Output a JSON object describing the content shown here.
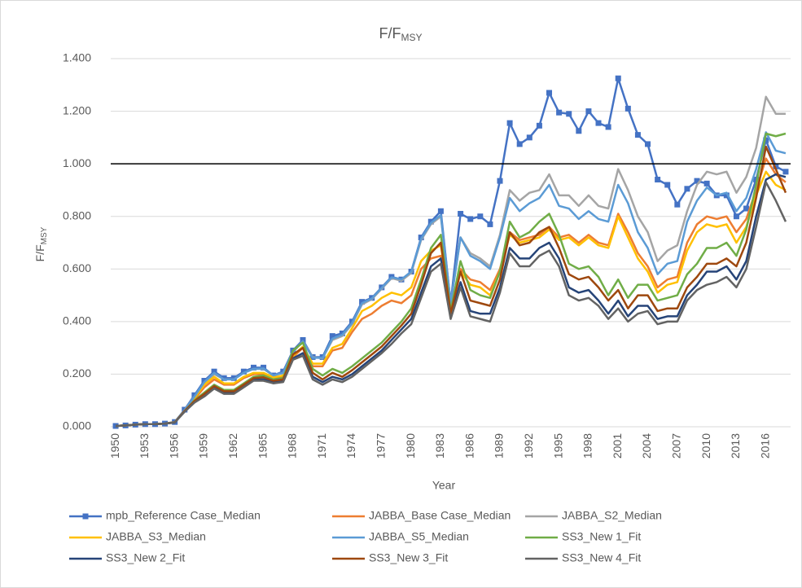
{
  "chart_data": {
    "type": "line",
    "title": "F/F",
    "title_subscript": "MSY",
    "x_label": "Year",
    "y_label": "F/F",
    "y_label_subscript": "MSY",
    "categories": [
      "1950",
      null,
      null,
      "1953",
      null,
      null,
      "1956",
      null,
      null,
      "1959",
      null,
      null,
      "1962",
      null,
      null,
      "1965",
      null,
      null,
      "1968",
      null,
      null,
      "1971",
      null,
      null,
      "1974",
      null,
      null,
      "1977",
      null,
      null,
      "1980",
      null,
      null,
      "1983",
      null,
      null,
      "1986",
      null,
      null,
      "1989",
      null,
      null,
      "1992",
      null,
      null,
      "1995",
      null,
      null,
      "1998",
      null,
      null,
      "2001",
      null,
      null,
      "2004",
      null,
      null,
      "2007",
      null,
      null,
      "2010",
      null,
      null,
      "2013",
      null,
      null,
      "2016",
      null,
      null
    ],
    "ylim": [
      0,
      1.4
    ],
    "yticks": [
      {
        "value": 0,
        "label": "0.000"
      },
      {
        "value": 0.2,
        "label": "0.200"
      },
      {
        "value": 0.4,
        "label": "0.400"
      },
      {
        "value": 0.6,
        "label": "0.600"
      },
      {
        "value": 0.8,
        "label": "0.800"
      },
      {
        "value": 1,
        "label": "1.000"
      },
      {
        "value": 1.2,
        "label": "1.200"
      },
      {
        "value": 1.4,
        "label": "1.400"
      }
    ],
    "grid": true,
    "reference_line": {
      "value": 1,
      "color": "#000000"
    },
    "legend": "bottom",
    "series": [
      {
        "name": "mpb_Reference Case_Median",
        "color": "#4472c4",
        "marker": "square",
        "values": [
          0.003,
          0.005,
          0.008,
          0.01,
          0.01,
          0.012,
          0.018,
          0.065,
          0.12,
          0.175,
          0.21,
          0.185,
          0.185,
          0.21,
          0.225,
          0.225,
          0.195,
          0.21,
          0.29,
          0.33,
          0.265,
          0.265,
          0.345,
          0.355,
          0.4,
          0.475,
          0.49,
          0.53,
          0.57,
          0.56,
          0.59,
          0.72,
          0.78,
          0.82,
          0.47,
          0.81,
          0.79,
          0.8,
          0.77,
          0.935,
          1.155,
          1.075,
          1.1,
          1.145,
          1.27,
          1.195,
          1.19,
          1.125,
          1.2,
          1.155,
          1.14,
          1.325,
          1.21,
          1.11,
          1.075,
          0.94,
          0.92,
          0.845,
          0.905,
          0.935,
          0.925,
          0.88,
          0.88,
          0.8,
          0.83,
          0.94,
          1.09,
          0.99,
          0.97
        ]
      },
      {
        "name": "JABBA_Base Case_Median",
        "color": "#ed7d31",
        "values": [
          0.003,
          0.005,
          0.008,
          0.01,
          0.01,
          0.012,
          0.017,
          0.06,
          0.105,
          0.15,
          0.18,
          0.16,
          0.16,
          0.185,
          0.2,
          0.2,
          0.185,
          0.19,
          0.265,
          0.3,
          0.23,
          0.23,
          0.29,
          0.3,
          0.36,
          0.41,
          0.43,
          0.46,
          0.48,
          0.47,
          0.5,
          0.6,
          0.64,
          0.65,
          0.46,
          0.6,
          0.56,
          0.55,
          0.52,
          0.6,
          0.74,
          0.71,
          0.72,
          0.73,
          0.76,
          0.72,
          0.73,
          0.7,
          0.73,
          0.7,
          0.69,
          0.81,
          0.74,
          0.66,
          0.61,
          0.53,
          0.56,
          0.57,
          0.7,
          0.77,
          0.8,
          0.79,
          0.8,
          0.74,
          0.79,
          0.9,
          1.02,
          0.96,
          0.93
        ]
      },
      {
        "name": "JABBA_S2_Median",
        "color": "#a5a5a5",
        "values": [
          0.003,
          0.005,
          0.008,
          0.01,
          0.01,
          0.012,
          0.018,
          0.063,
          0.115,
          0.165,
          0.2,
          0.18,
          0.18,
          0.205,
          0.22,
          0.22,
          0.195,
          0.205,
          0.285,
          0.325,
          0.265,
          0.26,
          0.33,
          0.345,
          0.39,
          0.465,
          0.485,
          0.525,
          0.565,
          0.555,
          0.585,
          0.71,
          0.77,
          0.8,
          0.47,
          0.72,
          0.66,
          0.64,
          0.61,
          0.73,
          0.9,
          0.86,
          0.89,
          0.9,
          0.96,
          0.88,
          0.88,
          0.84,
          0.88,
          0.84,
          0.83,
          0.98,
          0.9,
          0.8,
          0.74,
          0.63,
          0.67,
          0.69,
          0.82,
          0.92,
          0.97,
          0.96,
          0.97,
          0.89,
          0.95,
          1.06,
          1.255,
          1.19,
          1.19
        ]
      },
      {
        "name": "JABBA_S3_Median",
        "color": "#ffc000",
        "values": [
          0.003,
          0.005,
          0.008,
          0.01,
          0.01,
          0.012,
          0.017,
          0.062,
          0.11,
          0.16,
          0.19,
          0.165,
          0.165,
          0.19,
          0.205,
          0.205,
          0.188,
          0.195,
          0.27,
          0.305,
          0.24,
          0.24,
          0.3,
          0.315,
          0.375,
          0.44,
          0.46,
          0.49,
          0.51,
          0.5,
          0.53,
          0.63,
          0.67,
          0.69,
          0.45,
          0.59,
          0.54,
          0.53,
          0.5,
          0.59,
          0.73,
          0.7,
          0.71,
          0.72,
          0.75,
          0.71,
          0.72,
          0.69,
          0.72,
          0.69,
          0.68,
          0.8,
          0.72,
          0.64,
          0.59,
          0.51,
          0.54,
          0.55,
          0.67,
          0.74,
          0.77,
          0.76,
          0.77,
          0.7,
          0.76,
          0.88,
          0.97,
          0.92,
          0.9
        ]
      },
      {
        "name": "JABBA_S5_Median",
        "color": "#5b9bd5",
        "values": [
          0.003,
          0.005,
          0.008,
          0.01,
          0.01,
          0.012,
          0.018,
          0.063,
          0.115,
          0.17,
          0.205,
          0.18,
          0.18,
          0.205,
          0.22,
          0.222,
          0.195,
          0.205,
          0.285,
          0.325,
          0.262,
          0.262,
          0.335,
          0.35,
          0.395,
          0.47,
          0.488,
          0.528,
          0.568,
          0.56,
          0.59,
          0.715,
          0.775,
          0.805,
          0.47,
          0.72,
          0.65,
          0.63,
          0.6,
          0.72,
          0.87,
          0.82,
          0.85,
          0.87,
          0.92,
          0.84,
          0.83,
          0.79,
          0.82,
          0.79,
          0.78,
          0.92,
          0.85,
          0.74,
          0.68,
          0.58,
          0.62,
          0.63,
          0.78,
          0.86,
          0.91,
          0.88,
          0.89,
          0.82,
          0.87,
          0.98,
          1.12,
          1.05,
          1.04
        ]
      },
      {
        "name": "SS3_New 1_Fit",
        "color": "#70ad47",
        "values": [
          0.003,
          0.005,
          0.008,
          0.01,
          0.01,
          0.012,
          0.017,
          0.06,
          0.1,
          0.13,
          0.16,
          0.14,
          0.14,
          0.165,
          0.19,
          0.195,
          0.18,
          0.185,
          0.29,
          0.32,
          0.22,
          0.195,
          0.22,
          0.205,
          0.23,
          0.26,
          0.29,
          0.32,
          0.36,
          0.4,
          0.45,
          0.56,
          0.68,
          0.73,
          0.44,
          0.63,
          0.52,
          0.5,
          0.49,
          0.59,
          0.78,
          0.72,
          0.74,
          0.78,
          0.81,
          0.73,
          0.62,
          0.6,
          0.61,
          0.57,
          0.5,
          0.56,
          0.49,
          0.54,
          0.54,
          0.48,
          0.49,
          0.5,
          0.58,
          0.62,
          0.68,
          0.68,
          0.7,
          0.65,
          0.75,
          0.92,
          1.115,
          1.105,
          1.115
        ]
      },
      {
        "name": "SS3_New 2_Fit",
        "color": "#264478",
        "values": [
          0.003,
          0.005,
          0.008,
          0.01,
          0.01,
          0.012,
          0.016,
          0.058,
          0.095,
          0.12,
          0.15,
          0.13,
          0.13,
          0.155,
          0.18,
          0.18,
          0.17,
          0.175,
          0.26,
          0.28,
          0.19,
          0.17,
          0.19,
          0.18,
          0.2,
          0.23,
          0.26,
          0.29,
          0.33,
          0.37,
          0.41,
          0.51,
          0.61,
          0.64,
          0.42,
          0.55,
          0.44,
          0.43,
          0.43,
          0.53,
          0.68,
          0.64,
          0.64,
          0.68,
          0.7,
          0.64,
          0.53,
          0.51,
          0.52,
          0.48,
          0.43,
          0.48,
          0.42,
          0.46,
          0.46,
          0.41,
          0.42,
          0.42,
          0.5,
          0.54,
          0.59,
          0.59,
          0.61,
          0.56,
          0.63,
          0.8,
          0.94,
          0.96,
          0.95
        ]
      },
      {
        "name": "SS3_New 3_Fit",
        "color": "#9e480e",
        "values": [
          0.003,
          0.005,
          0.008,
          0.01,
          0.01,
          0.012,
          0.017,
          0.06,
          0.098,
          0.125,
          0.155,
          0.135,
          0.135,
          0.16,
          0.185,
          0.188,
          0.175,
          0.18,
          0.275,
          0.3,
          0.205,
          0.18,
          0.205,
          0.19,
          0.215,
          0.245,
          0.275,
          0.305,
          0.345,
          0.385,
          0.43,
          0.54,
          0.66,
          0.7,
          0.43,
          0.59,
          0.48,
          0.47,
          0.46,
          0.56,
          0.74,
          0.69,
          0.7,
          0.74,
          0.76,
          0.68,
          0.58,
          0.56,
          0.57,
          0.53,
          0.48,
          0.52,
          0.45,
          0.5,
          0.5,
          0.44,
          0.45,
          0.45,
          0.53,
          0.57,
          0.62,
          0.62,
          0.64,
          0.61,
          0.7,
          0.87,
          1.065,
          0.98,
          0.89
        ]
      },
      {
        "name": "SS3_New 4_Fit",
        "color": "#636363",
        "values": [
          0.003,
          0.005,
          0.008,
          0.01,
          0.01,
          0.012,
          0.016,
          0.057,
          0.092,
          0.115,
          0.145,
          0.125,
          0.125,
          0.15,
          0.175,
          0.175,
          0.165,
          0.17,
          0.255,
          0.27,
          0.18,
          0.16,
          0.18,
          0.17,
          0.19,
          0.22,
          0.25,
          0.28,
          0.315,
          0.355,
          0.39,
          0.49,
          0.59,
          0.62,
          0.41,
          0.53,
          0.42,
          0.41,
          0.4,
          0.51,
          0.66,
          0.61,
          0.61,
          0.65,
          0.67,
          0.61,
          0.5,
          0.48,
          0.49,
          0.46,
          0.41,
          0.45,
          0.4,
          0.43,
          0.44,
          0.39,
          0.4,
          0.4,
          0.48,
          0.52,
          0.54,
          0.55,
          0.57,
          0.53,
          0.6,
          0.76,
          0.93,
          0.86,
          0.78
        ]
      }
    ]
  }
}
